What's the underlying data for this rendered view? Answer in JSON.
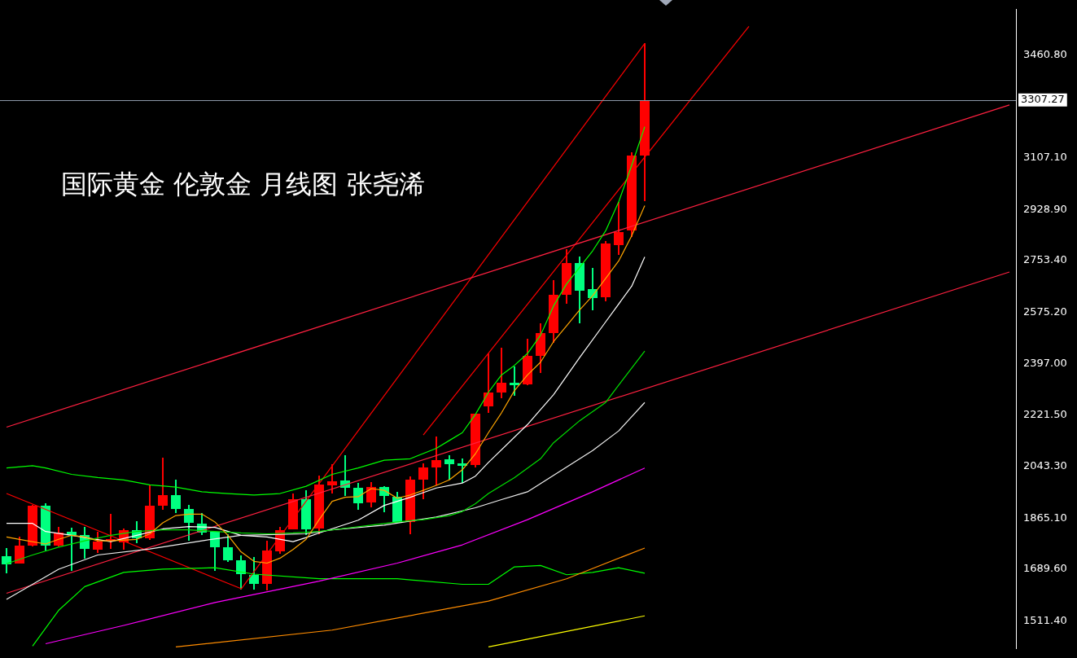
{
  "chart_data": {
    "type": "candlestick",
    "title": "国际黄金 伦敦金 月线图 张尧浠",
    "categories": [
      null,
      null,
      null,
      null,
      null,
      null,
      null,
      null,
      null,
      null,
      null,
      null,
      null,
      null,
      null,
      null,
      null,
      null,
      null,
      null,
      null,
      null,
      null,
      null,
      null,
      null,
      null,
      null,
      null,
      null,
      null,
      null,
      null,
      null,
      null,
      null,
      null,
      null,
      null,
      null,
      null,
      null,
      null,
      null,
      null,
      null,
      null,
      null,
      null,
      null,
      null,
      null,
      null,
      null,
      null,
      null,
      null,
      null,
      null,
      null,
      null,
      null,
      null,
      null,
      null,
      null,
      null,
      null,
      null,
      null,
      null,
      null,
      null,
      null,
      null,
      null,
      null,
      null
    ],
    "ohlc": [
      [
        1735,
        1762,
        1675,
        1708
      ],
      [
        1708,
        1800,
        1708,
        1770
      ],
      [
        1768,
        1912,
        1768,
        1907
      ],
      [
        1907,
        1917,
        1754,
        1768
      ],
      [
        1768,
        1836,
        1768,
        1814
      ],
      [
        1817,
        1833,
        1683,
        1806
      ],
      [
        1806,
        1836,
        1724,
        1757
      ],
      [
        1757,
        1817,
        1746,
        1784
      ],
      [
        1787,
        1880,
        1760,
        1792
      ],
      [
        1784,
        1830,
        1757,
        1825
      ],
      [
        1825,
        1855,
        1779,
        1798
      ],
      [
        1798,
        1978,
        1790,
        1909
      ],
      [
        1909,
        2073,
        1893,
        1945
      ],
      [
        1945,
        1999,
        1884,
        1896
      ],
      [
        1896,
        1912,
        1787,
        1847
      ],
      [
        1847,
        1882,
        1806,
        1817
      ],
      [
        1817,
        1820,
        1683,
        1765
      ],
      [
        1765,
        1811,
        1713,
        1719
      ],
      [
        1719,
        1738,
        1620,
        1670
      ],
      [
        1670,
        1732,
        1620,
        1638
      ],
      [
        1638,
        1787,
        1615,
        1754
      ],
      [
        1751,
        1836,
        1743,
        1825
      ],
      [
        1828,
        1950,
        1828,
        1931
      ],
      [
        1931,
        1961,
        1806,
        1828
      ],
      [
        1828,
        2013,
        1811,
        1980
      ],
      [
        1978,
        2051,
        1950,
        1991
      ],
      [
        1994,
        2081,
        1942,
        1970
      ],
      [
        1970,
        1986,
        1893,
        1918
      ],
      [
        1918,
        1989,
        1901,
        1972
      ],
      [
        1972,
        1975,
        1885,
        1940
      ],
      [
        1940,
        1956,
        1849,
        1849
      ],
      [
        1852,
        2010,
        1811,
        1997
      ],
      [
        1997,
        2054,
        1931,
        2040
      ],
      [
        2040,
        2147,
        1978,
        2065
      ],
      [
        2068,
        2081,
        1997,
        2051
      ],
      [
        2054,
        2070,
        1986,
        2046
      ],
      [
        2048,
        2226,
        2040,
        2226
      ],
      [
        2248,
        2433,
        2228,
        2297
      ],
      [
        2297,
        2452,
        2278,
        2332
      ],
      [
        2332,
        2389,
        2286,
        2324
      ],
      [
        2327,
        2485,
        2324,
        2425
      ],
      [
        2425,
        2537,
        2365,
        2504
      ],
      [
        2504,
        2687,
        2471,
        2635
      ],
      [
        2635,
        2793,
        2605,
        2744
      ],
      [
        2744,
        2766,
        2537,
        2648
      ],
      [
        2654,
        2727,
        2583,
        2624
      ],
      [
        2627,
        2820,
        2613,
        2812
      ],
      [
        2809,
        2956,
        2774,
        2853
      ],
      [
        2856,
        3128,
        2836,
        3115
      ],
      [
        3115,
        3502,
        2959,
        3307.27
      ],
      null,
      null,
      null,
      null,
      null,
      null,
      null,
      null,
      null,
      null,
      null,
      null,
      null,
      null,
      null,
      null,
      null,
      null,
      null,
      null,
      null,
      null,
      null,
      null,
      null,
      null,
      null,
      null
    ],
    "colors": [
      "#00ff7f",
      "#ff0000",
      "#ff0000",
      "#00ff7f",
      "#ff0000",
      "#00ff7f",
      "#00ff7f",
      "#ff0000",
      "#ff0000",
      "#ff0000",
      "#00ff7f",
      "#ff0000",
      "#ff0000",
      "#00ff7f",
      "#00ff7f",
      "#00ff7f",
      "#00ff7f",
      "#00ff7f",
      "#00ff7f",
      "#00ff7f",
      "#ff0000",
      "#ff0000",
      "#ff0000",
      "#00ff7f",
      "#ff0000",
      "#ff0000",
      "#00ff7f",
      "#00ff7f",
      "#ff0000",
      "#00ff7f",
      "#00ff7f",
      "#ff0000",
      "#ff0000",
      "#ff0000",
      "#00ff7f",
      "#00ff7f",
      "#ff0000",
      "#ff0000",
      "#ff0000",
      "#00ff7f",
      "#ff0000",
      "#ff0000",
      "#ff0000",
      "#ff0000",
      "#00ff7f",
      "#00ff7f",
      "#ff0000",
      "#ff0000",
      "#ff0000",
      "#ff0000",
      null,
      null,
      null,
      null,
      null,
      null,
      null,
      null,
      null,
      null,
      null,
      null,
      null,
      null,
      null,
      null,
      null,
      null,
      null,
      null,
      null,
      null,
      null,
      null,
      null,
      null,
      null,
      null
    ],
    "series": [
      {
        "type": "line",
        "color": "#ffa500",
        "values": [
          1800,
          1792,
          null,
          1776,
          1792,
          1806,
          1800,
          1787,
          1787,
          null,
          1792,
          1811,
          1849,
          1874,
          1879,
          1879,
          1852,
          1806,
          1749,
          1716,
          1710,
          1727,
          1757,
          1792,
          1860,
          1923,
          1937,
          1939,
          1967,
          1961,
          1934,
          1945,
          1961,
          1978,
          1997,
          2032,
          2087,
          2160,
          2228,
          2305,
          2359,
          2403,
          2474,
          2528,
          2583,
          2632,
          2692,
          2752,
          2839,
          2943,
          null,
          null,
          null,
          null,
          null,
          null,
          null,
          null,
          null,
          null,
          null,
          null,
          null,
          null,
          null,
          null,
          null,
          null,
          null,
          null,
          null,
          null,
          null,
          null,
          null,
          null,
          null,
          null
        ]
      },
      {
        "type": "line",
        "color": "#00ff00",
        "values": [
          2038,
          null,
          2046,
          2038,
          null,
          2016,
          null,
          2005,
          null,
          1997,
          null,
          1980,
          null,
          1972,
          null,
          1956,
          null,
          1950,
          null,
          1945,
          null,
          1950,
          null,
          1975,
          null,
          2016,
          null,
          2038,
          null,
          2065,
          null,
          2070,
          null,
          2106,
          2133,
          2160,
          2223,
          2299,
          2359,
          2392,
          2433,
          2496,
          2597,
          2673,
          2730,
          2787,
          2856,
          2956,
          3082,
          3215,
          null,
          null,
          null,
          null,
          null,
          null,
          null,
          null,
          null,
          null,
          null,
          null,
          null,
          null,
          null,
          null,
          null,
          null,
          null,
          null,
          null,
          null,
          null,
          null,
          null,
          null,
          null,
          null
        ]
      },
      {
        "type": "line",
        "color": "#00e000",
        "values": [
          1708,
          null,
          1738,
          null,
          1765,
          null,
          1787,
          null,
          1806,
          null,
          1819,
          null,
          1825,
          null,
          1825,
          null,
          1819,
          null,
          1814,
          null,
          1811,
          null,
          1814,
          null,
          1819,
          null,
          1830,
          null,
          1841,
          null,
          1852,
          null,
          1860,
          null,
          1874,
          1888,
          1915,
          1950,
          null,
          2005,
          null,
          2070,
          2125,
          null,
          2201,
          null,
          2264,
          2324,
          null,
          2441,
          null,
          null,
          null,
          null,
          null,
          null,
          null,
          null,
          null,
          null,
          null,
          null,
          null,
          null,
          null,
          null,
          null,
          null,
          null,
          null,
          null,
          null,
          null,
          null,
          null,
          null,
          null,
          null
        ]
      },
      {
        "type": "line",
        "color": "#ffffff",
        "values": [
          1847,
          null,
          1847,
          1819,
          null,
          1806,
          null,
          null,
          1784,
          null,
          1806,
          null,
          1828,
          null,
          1836,
          null,
          1833,
          null,
          1806,
          null,
          1800,
          null,
          1784,
          1798,
          1814,
          null,
          null,
          1858,
          null,
          1909,
          null,
          1937,
          null,
          1969,
          null,
          1986,
          2010,
          2057,
          null,
          null,
          2188,
          null,
          2291,
          null,
          2419,
          null,
          2542,
          null,
          2665,
          2766,
          null,
          null,
          null,
          null,
          null,
          null,
          null,
          null,
          null,
          null,
          null,
          null,
          null,
          null,
          null,
          null,
          null,
          null,
          null,
          null,
          null,
          null,
          null,
          null,
          null,
          null,
          null,
          null
        ]
      },
      {
        "type": "line",
        "color": "#f0f0f0",
        "values": [
          1585,
          null,
          null,
          null,
          1689,
          null,
          null,
          1738,
          null,
          null,
          null,
          1759,
          null,
          null,
          null,
          1787,
          null,
          null,
          1806,
          null,
          null,
          null,
          null,
          1811,
          null,
          1825,
          null,
          null,
          null,
          1841,
          null,
          null,
          null,
          1869,
          null,
          null,
          1901,
          null,
          1929,
          null,
          1956,
          null,
          null,
          null,
          null,
          2098,
          null,
          2166,
          null,
          2264,
          null,
          null,
          null,
          null,
          null,
          null,
          null,
          null,
          null,
          null,
          null,
          null,
          null,
          null,
          null,
          null,
          null,
          null,
          null,
          null,
          null,
          null,
          null,
          null,
          null,
          null,
          null,
          null
        ]
      },
      {
        "type": "line",
        "color": "#ff00ff",
        "values": [
          null,
          null,
          null,
          1432,
          null,
          null,
          null,
          null,
          null,
          1495,
          null,
          null,
          null,
          null,
          null,
          null,
          1574,
          null,
          null,
          null,
          null,
          null,
          null,
          null,
          1648,
          null,
          null,
          null,
          null,
          null,
          1710,
          null,
          null,
          null,
          null,
          1773,
          null,
          null,
          null,
          null,
          1860,
          null,
          null,
          null,
          null,
          1956,
          null,
          null,
          null,
          2038,
          null,
          null,
          null,
          null,
          null,
          null,
          null,
          null,
          null,
          null,
          null,
          null,
          null,
          null,
          null,
          null,
          null,
          null,
          null,
          null,
          null,
          null,
          null,
          null,
          null,
          null,
          null,
          null
        ]
      },
      {
        "type": "line",
        "color": "#ff8c00",
        "values": [
          null,
          null,
          null,
          null,
          null,
          null,
          null,
          null,
          null,
          null,
          null,
          null,
          null,
          1421,
          null,
          null,
          null,
          null,
          null,
          null,
          null,
          null,
          null,
          null,
          null,
          1479,
          null,
          null,
          null,
          null,
          null,
          null,
          null,
          null,
          null,
          null,
          null,
          1579,
          null,
          null,
          null,
          null,
          null,
          1656,
          null,
          null,
          null,
          null,
          null,
          1762,
          null,
          null,
          null,
          null,
          null,
          null,
          null,
          null,
          null,
          null,
          null,
          null,
          null,
          null,
          null,
          null,
          null,
          null,
          null,
          null,
          null,
          null,
          null,
          null,
          null,
          null,
          null,
          null
        ]
      },
      {
        "type": "line",
        "color": "#ffff00",
        "values": [
          null,
          null,
          null,
          null,
          null,
          null,
          null,
          null,
          null,
          null,
          null,
          null,
          null,
          null,
          null,
          null,
          null,
          null,
          null,
          null,
          null,
          null,
          null,
          null,
          null,
          null,
          null,
          null,
          null,
          null,
          null,
          null,
          null,
          null,
          null,
          null,
          null,
          1421,
          null,
          null,
          null,
          null,
          null,
          null,
          null,
          null,
          null,
          null,
          null,
          1528,
          null,
          null,
          null,
          null,
          null,
          null,
          null,
          null,
          null,
          null,
          null,
          null,
          null,
          null,
          null,
          null,
          null,
          null,
          null,
          null,
          null,
          null,
          null,
          null,
          null,
          null,
          null,
          null
        ]
      },
      {
        "type": "line",
        "color": "#00ff00",
        "values": [
          null,
          null,
          1424,
          null,
          1547,
          null,
          1629,
          null,
          null,
          1678,
          null,
          null,
          1689,
          null,
          null,
          null,
          1694,
          null,
          null,
          1672,
          null,
          null,
          null,
          null,
          1656,
          null,
          null,
          null,
          null,
          null,
          1656,
          null,
          null,
          null,
          null,
          1637,
          null,
          1637,
          null,
          1697,
          null,
          1702,
          null,
          1670,
          null,
          1678,
          null,
          1694,
          null,
          1675,
          null,
          null,
          null,
          null,
          null,
          null,
          null,
          null,
          null,
          null,
          null,
          null,
          null,
          null,
          null,
          null,
          null,
          null,
          null,
          null,
          null,
          null,
          null,
          null,
          null,
          null,
          null,
          null
        ]
      },
      {
        "type": "line",
        "color": "#ff2040",
        "values": [
          2179,
          null,
          null,
          null,
          null,
          null,
          null,
          null,
          null,
          null,
          null,
          null,
          null,
          null,
          null,
          null,
          null,
          null,
          null,
          null,
          null,
          null,
          null,
          null,
          null,
          null,
          null,
          null,
          null,
          null,
          null,
          null,
          null,
          null,
          null,
          null,
          null,
          null,
          null,
          null,
          null,
          null,
          null,
          null,
          null,
          null,
          null,
          null,
          null,
          null,
          null,
          null,
          null,
          null,
          null,
          null,
          null,
          null,
          null,
          null,
          null,
          null,
          null,
          null,
          null,
          null,
          null,
          null,
          null,
          null,
          null,
          null,
          null,
          null,
          null,
          null,
          null,
          3290
        ]
      },
      {
        "type": "line",
        "color": "#ff2040",
        "values": [
          1606,
          null,
          null,
          null,
          null,
          null,
          null,
          null,
          null,
          null,
          null,
          null,
          null,
          null,
          null,
          null,
          null,
          null,
          null,
          null,
          null,
          null,
          null,
          null,
          null,
          null,
          null,
          null,
          null,
          null,
          null,
          null,
          null,
          null,
          null,
          null,
          null,
          null,
          null,
          null,
          null,
          null,
          null,
          null,
          null,
          null,
          null,
          null,
          null,
          null,
          null,
          null,
          null,
          null,
          null,
          null,
          null,
          null,
          null,
          null,
          null,
          null,
          null,
          null,
          null,
          null,
          null,
          null,
          null,
          null,
          null,
          null,
          null,
          null,
          null,
          null,
          null,
          2714
        ]
      },
      {
        "type": "line",
        "color": "#ff0000",
        "values": [
          1950,
          null,
          null,
          null,
          null,
          null,
          null,
          null,
          null,
          null,
          null,
          null,
          null,
          null,
          null,
          null,
          null,
          null,
          1622,
          null,
          null,
          null,
          null,
          null,
          null,
          null,
          null,
          null,
          null,
          null,
          null,
          null,
          null,
          null,
          null,
          null,
          null,
          null,
          null,
          null,
          null,
          null,
          null,
          null,
          null,
          null,
          null,
          null,
          null,
          null,
          null,
          null,
          null,
          null,
          null,
          null,
          null,
          null,
          null,
          null,
          null,
          null,
          null,
          null,
          null,
          null,
          null,
          null,
          null,
          null,
          null,
          null,
          null,
          null,
          null,
          null,
          null,
          null
        ]
      },
      {
        "type": "line",
        "color": "#ff0000",
        "values": [
          null,
          null,
          null,
          null,
          null,
          null,
          null,
          null,
          null,
          null,
          null,
          null,
          null,
          null,
          null,
          null,
          null,
          null,
          1620,
          null,
          null,
          null,
          null,
          null,
          null,
          null,
          null,
          null,
          null,
          null,
          null,
          null,
          null,
          null,
          null,
          null,
          null,
          null,
          null,
          null,
          null,
          null,
          null,
          null,
          null,
          null,
          null,
          null,
          null,
          3502,
          null,
          null,
          null,
          null,
          null,
          null,
          null,
          null,
          null,
          null,
          null,
          null,
          null,
          null,
          null,
          null,
          null,
          null,
          null,
          null,
          null,
          null,
          null,
          null,
          null,
          null,
          null,
          null
        ]
      },
      {
        "type": "line",
        "color": "#ff0000",
        "values": [
          null,
          null,
          null,
          null,
          null,
          null,
          null,
          null,
          null,
          null,
          null,
          null,
          null,
          null,
          null,
          null,
          null,
          null,
          null,
          null,
          null,
          null,
          null,
          null,
          null,
          null,
          null,
          null,
          null,
          null,
          null,
          null,
          2152,
          null,
          null,
          null,
          null,
          null,
          null,
          null,
          null,
          null,
          null,
          null,
          null,
          null,
          null,
          null,
          null,
          null,
          null,
          null,
          null,
          null,
          null,
          null,
          null,
          3561,
          null,
          null,
          null,
          null,
          null,
          null,
          null,
          null,
          null,
          null,
          null,
          null,
          null,
          null,
          null,
          null,
          null,
          null,
          null,
          null
        ]
      }
    ],
    "ylim": [
      1415.9,
      3618.9
    ],
    "yticks": [
      {
        "value": 3460.8,
        "label": "3460.80"
      },
      {
        "value": 3107.1,
        "label": "3107.10"
      },
      {
        "value": 2928.9,
        "label": "2928.90"
      },
      {
        "value": 2753.4,
        "label": "2753.40"
      },
      {
        "value": 2575.2,
        "label": "2575.20"
      },
      {
        "value": 2397,
        "label": "2397.00"
      },
      {
        "value": 2221.5,
        "label": "2221.50"
      },
      {
        "value": 2043.3,
        "label": "2043.30"
      },
      {
        "value": 1865.1,
        "label": "1865.10"
      },
      {
        "value": 1689.6,
        "label": "1689.60"
      },
      {
        "value": 1511.4,
        "label": "1511.40"
      }
    ],
    "ref_lines": [
      {
        "axis": "y",
        "value": 3307.27,
        "label": "3307.27",
        "color": "#8c97a8"
      }
    ],
    "tick_labels": "y",
    "marker": "none"
  }
}
